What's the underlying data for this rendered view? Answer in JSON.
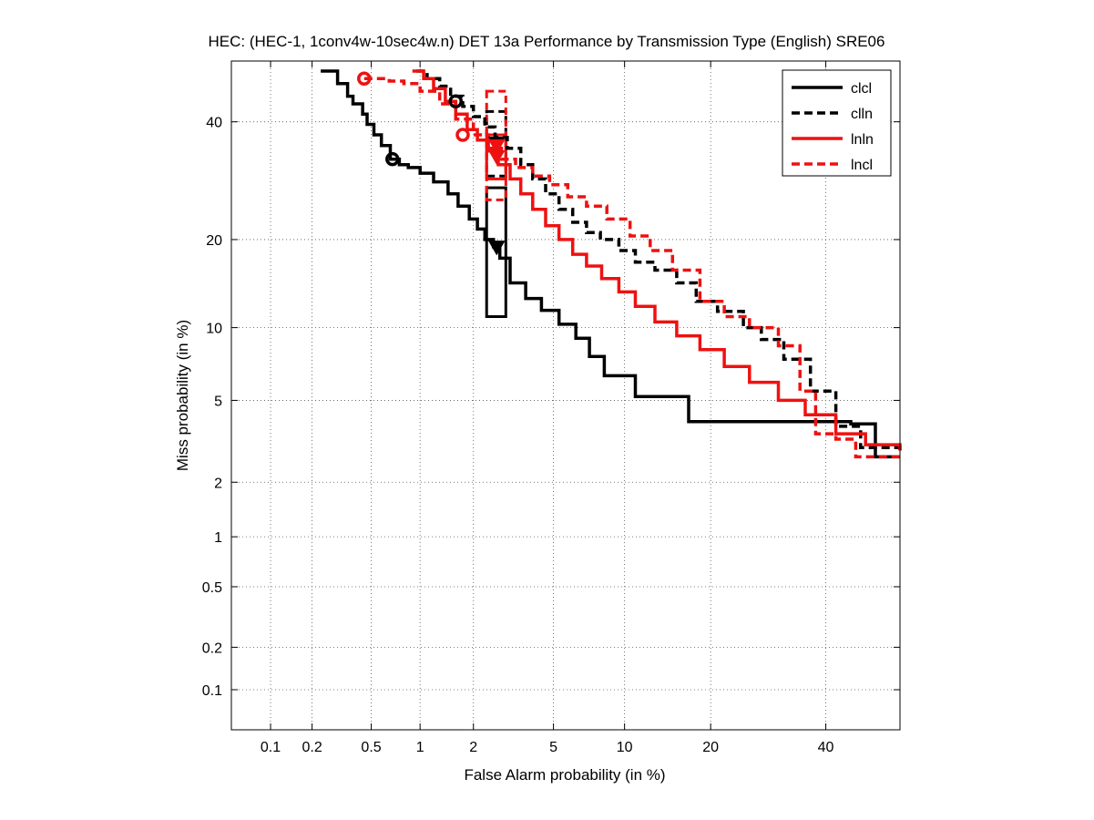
{
  "chart_data": {
    "type": "line",
    "title": "HEC: (HEC-1, 1conv4w-10sec4w.n) DET 13a Performance by Transmission Type (English) SRE06",
    "xlabel": "False Alarm probability (in %)",
    "ylabel": "Miss probability (in %)",
    "x_scale": "probit",
    "y_scale": "probit",
    "xlim": [
      0.05,
      55
    ],
    "ylim": [
      0.05,
      52
    ],
    "x_ticks": [
      0.1,
      0.2,
      0.5,
      1,
      2,
      5,
      10,
      20,
      40
    ],
    "x_tick_labels": [
      "0.1",
      "0.2",
      "0.5",
      "1",
      "2",
      "5",
      "10",
      "20",
      "40"
    ],
    "y_ticks": [
      0.1,
      0.2,
      0.5,
      1,
      2,
      5,
      10,
      20,
      40
    ],
    "y_tick_labels": [
      "0.1",
      "0.2",
      "0.5",
      "1",
      "2",
      "5",
      "10",
      "20",
      "40"
    ],
    "grid": true,
    "legend_position": "top-right",
    "series": [
      {
        "name": "clcl",
        "color": "#000000",
        "dash": "solid",
        "x": [
          0.23,
          0.26,
          0.3,
          0.35,
          0.38,
          0.44,
          0.47,
          0.52,
          0.58,
          0.66,
          0.75,
          0.85,
          1.0,
          1.2,
          1.45,
          1.65,
          1.9,
          2.1,
          2.3,
          2.55,
          2.75,
          3.1,
          3.7,
          4.4,
          5.3,
          6.3,
          7.2,
          8.3,
          11.0,
          17.0,
          25.0,
          35.0,
          45.0,
          50.0,
          55.0
        ],
        "y": [
          50.0,
          50.0,
          47.5,
          45.0,
          43.5,
          41.5,
          39.5,
          37.5,
          35.5,
          33.0,
          32.0,
          31.5,
          30.5,
          29.0,
          27.0,
          25.0,
          23.0,
          21.5,
          20.0,
          19.0,
          17.5,
          14.5,
          12.8,
          11.6,
          10.3,
          9.1,
          7.7,
          6.4,
          5.2,
          4.0,
          4.0,
          4.0,
          3.9,
          2.7,
          2.7
        ]
      },
      {
        "name": "clln",
        "color": "#000000",
        "dash": "dashed",
        "x": [
          0.95,
          1.1,
          1.3,
          1.5,
          1.75,
          2.0,
          2.3,
          2.6,
          3.0,
          3.5,
          4.0,
          4.6,
          5.3,
          6.1,
          7.0,
          8.0,
          9.5,
          11.0,
          13.0,
          15.5,
          18.0,
          21.0,
          25.0,
          28.0,
          32.0,
          37.0,
          42.0,
          47.0,
          55.0
        ],
        "y": [
          50.0,
          48.5,
          47.0,
          45.0,
          43.0,
          41.0,
          39.0,
          37.0,
          35.0,
          32.0,
          29.5,
          27.0,
          24.5,
          22.5,
          21.0,
          20.0,
          18.5,
          17.0,
          16.0,
          14.5,
          12.5,
          11.5,
          10.0,
          9.0,
          7.5,
          5.5,
          3.8,
          3.0,
          2.8
        ]
      },
      {
        "name": "lnln",
        "color": "#ee1111",
        "dash": "solid",
        "x": [
          0.9,
          1.05,
          1.2,
          1.4,
          1.6,
          1.85,
          2.1,
          2.4,
          2.7,
          3.1,
          3.5,
          4.0,
          4.6,
          5.3,
          6.1,
          7.0,
          8.1,
          9.5,
          11.0,
          13.0,
          15.5,
          18.5,
          22.0,
          26.0,
          31.0,
          36.0,
          42.0,
          48.0,
          55.0
        ],
        "y": [
          50.0,
          48.5,
          46.5,
          44.0,
          41.5,
          38.5,
          36.5,
          34.5,
          32.0,
          29.5,
          27.0,
          24.5,
          22.0,
          20.0,
          18.0,
          16.5,
          15.0,
          13.5,
          12.0,
          10.5,
          9.3,
          8.2,
          7.0,
          6.0,
          5.0,
          4.3,
          3.5,
          3.1,
          2.9
        ]
      },
      {
        "name": "lncl",
        "color": "#ee1111",
        "dash": "dashed",
        "x": [
          0.45,
          0.55,
          0.65,
          0.8,
          1.0,
          1.3,
          1.6,
          2.0,
          2.4,
          2.8,
          3.3,
          4.0,
          4.8,
          5.8,
          7.0,
          8.5,
          10.5,
          12.5,
          15.0,
          18.5,
          22.0,
          26.0,
          31.0,
          35.0,
          38.0,
          42.0,
          46.0,
          55.0
        ],
        "y": [
          48.5,
          48.5,
          48.0,
          47.5,
          46.0,
          43.5,
          40.5,
          37.5,
          35.0,
          33.0,
          31.5,
          30.0,
          28.5,
          26.5,
          25.0,
          23.0,
          20.5,
          18.5,
          16.0,
          12.5,
          11.0,
          10.0,
          8.5,
          5.5,
          3.5,
          3.3,
          2.7,
          2.7
        ]
      }
    ],
    "markers": [
      {
        "series": "clcl",
        "type": "circle",
        "x": 0.68,
        "y": 33.0
      },
      {
        "series": "clln",
        "type": "circle",
        "x": 1.6,
        "y": 44.0
      },
      {
        "series": "lnln",
        "type": "circle",
        "x": 1.75,
        "y": 37.5
      },
      {
        "series": "lncl",
        "type": "circle",
        "x": 0.45,
        "y": 48.5
      },
      {
        "series": "clcl",
        "type": "triangle",
        "x": 2.65,
        "y": 19.0
      },
      {
        "series": "clln",
        "type": "triangle",
        "x": 2.65,
        "y": 36.0
      },
      {
        "series": "lnln",
        "type": "triangle",
        "x": 2.65,
        "y": 33.5
      },
      {
        "series": "lncl",
        "type": "triangle",
        "x": 2.65,
        "y": 35.5
      }
    ],
    "confidence_boxes": [
      {
        "series": "clcl",
        "x_low": 2.35,
        "x_high": 2.95,
        "y_low": 11.0,
        "y_high": 28.0
      },
      {
        "series": "clln",
        "x_low": 2.35,
        "x_high": 2.95,
        "y_low": 30.0,
        "y_high": 42.0
      },
      {
        "series": "lnln",
        "x_low": 2.35,
        "x_high": 2.95,
        "y_low": 29.5,
        "y_high": 37.5
      },
      {
        "series": "lncl",
        "x_low": 2.35,
        "x_high": 2.95,
        "y_low": 26.0,
        "y_high": 46.0
      }
    ]
  }
}
